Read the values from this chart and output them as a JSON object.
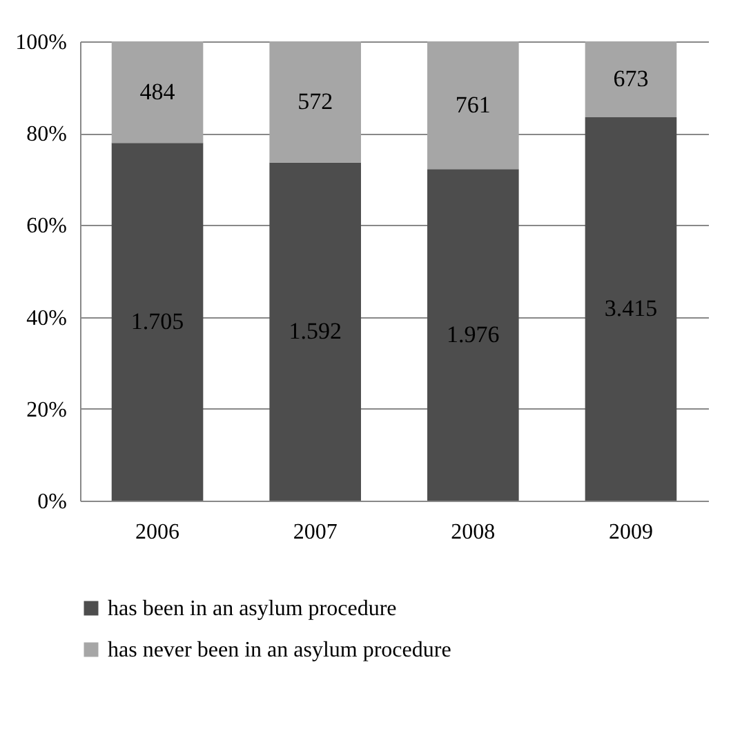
{
  "chart_data": {
    "type": "bar",
    "stacked": true,
    "categories": [
      "2006",
      "2007",
      "2008",
      "2009"
    ],
    "series": [
      {
        "name": "has been in an asylum procedure",
        "color": "#4d4d4d",
        "values": [
          77.9,
          73.6,
          72.2,
          83.5
        ]
      },
      {
        "name": "has never been in an asylum procedure",
        "color": "#a6a6a6",
        "values": [
          22.1,
          26.4,
          27.8,
          16.5
        ]
      }
    ],
    "annotations": [
      "1.705",
      "1.592",
      "1.976",
      "3.415",
      "484",
      "572",
      "761",
      "673"
    ],
    "ylim": [
      0,
      100
    ],
    "yticks": [
      {
        "value": 0,
        "label": "0%"
      },
      {
        "value": 20,
        "label": "20%"
      },
      {
        "value": 40,
        "label": "40%"
      },
      {
        "value": 60,
        "label": "60%"
      },
      {
        "value": 80,
        "label": "80%"
      },
      {
        "value": 100,
        "label": "100%"
      }
    ],
    "grid": "y",
    "legend": "bottom"
  }
}
